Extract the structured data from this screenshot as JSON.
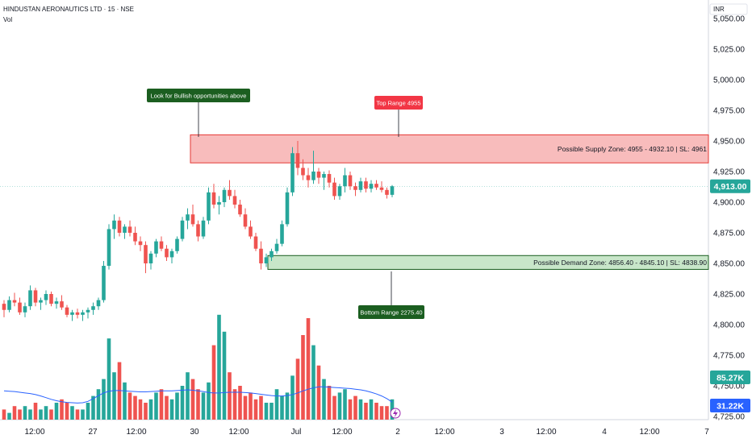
{
  "header": {
    "title": "HINDUSTAN AERONAUTICS LTD · 15 · NSE",
    "volume_label": "Vol"
  },
  "currency": "INR",
  "colors": {
    "up": "#26a69a",
    "down": "#ef5350",
    "supply_fill": "#f8bcbc",
    "supply_border": "#e53935",
    "demand_fill": "#c8e6c9",
    "demand_border": "#1b5e20",
    "ma": "#2962ff"
  },
  "price_badges": {
    "last_price": "4,913.00",
    "volume": "85.27K",
    "volume_ma": "31.22K"
  },
  "annotations": {
    "supply_zone": "Possible Supply Zone: 4955 - 4932.10 | SL: 4961",
    "demand_zone": "Possible Demand Zone: 4856.40 - 4845.10 | SL: 4838.90",
    "bullish_callout": "Look for Bullish opportunities above",
    "top_range": "Top Range 4955",
    "bottom_range": "Bottom Range 2275.40"
  },
  "chart_data": {
    "type": "candlestick",
    "title": "HINDUSTAN AERONAUTICS LTD · 15 · NSE",
    "x_tick_labels": [
      "12:00",
      "27",
      "12:00",
      "30",
      "12:00",
      "Jul",
      "12:00",
      "2",
      "12:00",
      "3",
      "12:00",
      "4",
      "12:00",
      "7"
    ],
    "y_tick_labels": [
      "5,050.00",
      "5,025.00",
      "5,000.00",
      "4,975.00",
      "4,950.00",
      "4,925.00",
      "4,900.00",
      "4,875.00",
      "4,850.00",
      "4,825.00",
      "4,800.00",
      "4,775.00",
      "4,750.00",
      "4,725.00"
    ],
    "ylim": [
      4725,
      5050
    ],
    "supply_zone": {
      "top": 4955,
      "bottom": 4932.1,
      "stop_loss": 4961
    },
    "demand_zone": {
      "top": 4856.4,
      "bottom": 4845.1,
      "stop_loss": 4838.9
    },
    "last_price": 4913.0,
    "grid": false,
    "candles": [
      [
        4817,
        4820,
        4806,
        4812
      ],
      [
        4812,
        4823,
        4810,
        4820
      ],
      [
        4820,
        4826,
        4815,
        4818
      ],
      [
        4818,
        4822,
        4808,
        4810
      ],
      [
        4810,
        4818,
        4806,
        4815
      ],
      [
        4815,
        4832,
        4812,
        4828
      ],
      [
        4828,
        4830,
        4815,
        4818
      ],
      [
        4818,
        4822,
        4812,
        4820
      ],
      [
        4820,
        4828,
        4816,
        4825
      ],
      [
        4825,
        4827,
        4815,
        4817
      ],
      [
        4817,
        4822,
        4813,
        4819
      ],
      [
        4819,
        4824,
        4812,
        4814
      ],
      [
        4814,
        4816,
        4806,
        4808
      ],
      [
        4808,
        4812,
        4803,
        4810
      ],
      [
        4810,
        4813,
        4805,
        4808
      ],
      [
        4808,
        4812,
        4803,
        4810
      ],
      [
        4810,
        4814,
        4805,
        4812
      ],
      [
        4812,
        4818,
        4808,
        4815
      ],
      [
        4815,
        4822,
        4812,
        4820
      ],
      [
        4820,
        4852,
        4818,
        4848
      ],
      [
        4848,
        4882,
        4845,
        4878
      ],
      [
        4878,
        4890,
        4870,
        4885
      ],
      [
        4885,
        4888,
        4872,
        4875
      ],
      [
        4875,
        4882,
        4870,
        4880
      ],
      [
        4880,
        4885,
        4872,
        4875
      ],
      [
        4875,
        4880,
        4865,
        4868
      ],
      [
        4868,
        4872,
        4860,
        4865
      ],
      [
        4865,
        4868,
        4842,
        4850
      ],
      [
        4850,
        4860,
        4845,
        4858
      ],
      [
        4858,
        4870,
        4855,
        4868
      ],
      [
        4868,
        4872,
        4860,
        4862
      ],
      [
        4862,
        4865,
        4852,
        4855
      ],
      [
        4855,
        4862,
        4850,
        4860
      ],
      [
        4860,
        4872,
        4858,
        4870
      ],
      [
        4870,
        4888,
        4868,
        4885
      ],
      [
        4885,
        4895,
        4878,
        4890
      ],
      [
        4890,
        4898,
        4880,
        4882
      ],
      [
        4882,
        4885,
        4868,
        4872
      ],
      [
        4872,
        4888,
        4870,
        4885
      ],
      [
        4885,
        4912,
        4882,
        4908
      ],
      [
        4908,
        4915,
        4895,
        4898
      ],
      [
        4898,
        4905,
        4890,
        4900
      ],
      [
        4900,
        4912,
        4896,
        4910
      ],
      [
        4910,
        4918,
        4902,
        4905
      ],
      [
        4905,
        4910,
        4895,
        4898
      ],
      [
        4898,
        4902,
        4888,
        4890
      ],
      [
        4890,
        4895,
        4878,
        4880
      ],
      [
        4880,
        4885,
        4870,
        4872
      ],
      [
        4872,
        4875,
        4860,
        4862
      ],
      [
        4862,
        4868,
        4845,
        4850
      ],
      [
        4850,
        4858,
        4847,
        4855
      ],
      [
        4855,
        4862,
        4852,
        4860
      ],
      [
        4860,
        4870,
        4858,
        4866
      ],
      [
        4866,
        4885,
        4864,
        4882
      ],
      [
        4882,
        4912,
        4880,
        4908
      ],
      [
        4908,
        4945,
        4905,
        4940
      ],
      [
        4940,
        4950,
        4922,
        4928
      ],
      [
        4928,
        4935,
        4918,
        4922
      ],
      [
        4922,
        4928,
        4912,
        4918
      ],
      [
        4918,
        4942,
        4915,
        4925
      ],
      [
        4925,
        4928,
        4915,
        4920
      ],
      [
        4920,
        4925,
        4910,
        4923
      ],
      [
        4923,
        4926,
        4912,
        4916
      ],
      [
        4916,
        4920,
        4902,
        4905
      ],
      [
        4905,
        4915,
        4902,
        4913
      ],
      [
        4913,
        4928,
        4908,
        4922
      ],
      [
        4922,
        4925,
        4910,
        4913
      ],
      [
        4913,
        4916,
        4905,
        4910
      ],
      [
        4910,
        4920,
        4908,
        4917
      ],
      [
        4917,
        4920,
        4908,
        4911
      ],
      [
        4911,
        4918,
        4908,
        4915
      ],
      [
        4915,
        4918,
        4910,
        4912
      ],
      [
        4912,
        4917,
        4908,
        4910
      ],
      [
        4910,
        4912,
        4903,
        4906
      ],
      [
        4906,
        4914,
        4904,
        4913
      ]
    ],
    "volume": [
      3,
      2,
      4,
      3,
      4,
      3,
      5,
      3,
      4,
      3,
      5,
      6,
      5,
      4,
      3,
      3,
      5,
      7,
      9,
      12,
      24,
      14,
      17,
      11,
      8,
      7,
      6,
      5,
      6,
      8,
      9,
      7,
      6,
      8,
      10,
      14,
      12,
      9,
      8,
      11,
      22,
      31,
      26,
      14,
      9,
      10,
      7,
      8,
      6,
      7,
      5,
      5,
      9,
      7,
      8,
      13,
      18,
      25,
      30,
      22,
      16,
      12,
      10,
      7,
      8,
      9,
      6,
      7,
      6,
      5,
      6,
      5,
      4,
      4,
      6
    ],
    "volume_ma": [
      8.5,
      8.4,
      8.3,
      8.1,
      7.9,
      7.7,
      7.4,
      7.0,
      6.5,
      6.0,
      5.6,
      5.3,
      5.1,
      5.0,
      4.9,
      5.0,
      5.4,
      6.2,
      7.1,
      7.9,
      8.4,
      8.6,
      8.6,
      8.5,
      8.4,
      8.3,
      8.2,
      8.2,
      8.3,
      8.4,
      8.5,
      8.5,
      8.5,
      8.6,
      8.7,
      8.8,
      8.7,
      8.5,
      8.3,
      8.0,
      7.9,
      7.9,
      8.0,
      8.1,
      8.1,
      8.1,
      8.0,
      7.9,
      7.7,
      7.5,
      7.3,
      7.1,
      7.0,
      7.0,
      7.1,
      7.4,
      7.9,
      8.5,
      9.0,
      9.4,
      9.7,
      9.7,
      9.6,
      9.5,
      9.4,
      9.3,
      9.2,
      9.0,
      8.8,
      8.5,
      8.1,
      7.6,
      7.0,
      6.2,
      5.2
    ]
  }
}
